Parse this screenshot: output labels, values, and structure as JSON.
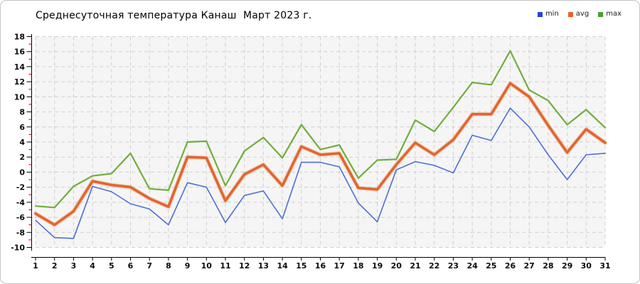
{
  "title": "Среднесуточная температура Канаш  Март 2023 г.",
  "legend": [
    {
      "label": "min",
      "color": "#2443e0"
    },
    {
      "label": "avg",
      "color": "#e8632c"
    },
    {
      "label": "max",
      "color": "#46a22a"
    }
  ],
  "colors": {
    "plot_bg": "#f5f5f5",
    "grid": "#cfcfcf",
    "axis": "#000000",
    "minor_tick": "#cc0000",
    "min_line": "#4d6fd6",
    "avg_line": "#e0662e",
    "avg_halo": "#f4a87e",
    "max_line": "#6fae3c"
  },
  "chart_data": {
    "type": "line",
    "title": "Среднесуточная температура Канаш  Март 2023 г.",
    "xlabel": "",
    "ylabel": "",
    "x": [
      1,
      2,
      3,
      4,
      5,
      6,
      7,
      8,
      9,
      10,
      11,
      12,
      13,
      14,
      15,
      16,
      17,
      18,
      19,
      20,
      21,
      22,
      23,
      24,
      25,
      26,
      27,
      28,
      29,
      30,
      31
    ],
    "xtick_labels": [
      "1",
      "2",
      "3",
      "4",
      "5",
      "6",
      "7",
      "8",
      "9",
      "10",
      "11",
      "12",
      "13",
      "14",
      "15",
      "16",
      "17",
      "18",
      "19",
      "20",
      "21",
      "22",
      "23",
      "24",
      "25",
      "26",
      "27",
      "28",
      "29",
      "30",
      "31"
    ],
    "ylim": [
      -10,
      18
    ],
    "ytick_step": 2,
    "y_minor_tick_step": 1,
    "grid": true,
    "legend_position": "top-right",
    "series": [
      {
        "name": "max",
        "color": "#6fae3c",
        "width": 2.2,
        "values": [
          -4.5,
          -4.7,
          -1.9,
          -0.5,
          -0.2,
          2.5,
          -2.2,
          -2.4,
          4.0,
          4.1,
          -1.8,
          2.8,
          4.6,
          1.9,
          6.3,
          3.0,
          3.6,
          -0.8,
          1.6,
          1.7,
          6.9,
          5.4,
          8.6,
          11.9,
          11.6,
          16.1,
          10.9,
          9.5,
          6.3,
          8.3,
          5.9
        ]
      },
      {
        "name": "min",
        "color": "#4d6fd6",
        "width": 1.6,
        "values": [
          -6.4,
          -8.7,
          -8.8,
          -1.9,
          -2.6,
          -4.2,
          -4.9,
          -7.0,
          -1.4,
          -2.0,
          -6.7,
          -3.1,
          -2.5,
          -6.2,
          1.3,
          1.3,
          0.7,
          -4.1,
          -6.6,
          0.3,
          1.4,
          0.9,
          -0.1,
          4.9,
          4.2,
          8.5,
          6.0,
          2.3,
          -1.0,
          2.3,
          2.5
        ]
      },
      {
        "name": "avg",
        "color": "#e0662e",
        "width": 3.6,
        "values": [
          -5.5,
          -7.0,
          -5.2,
          -1.2,
          -1.7,
          -2.0,
          -3.5,
          -4.6,
          2.0,
          1.9,
          -3.8,
          -0.3,
          1.0,
          -1.8,
          3.4,
          2.3,
          2.5,
          -2.1,
          -2.3,
          1.0,
          3.9,
          2.3,
          4.3,
          7.7,
          7.7,
          11.8,
          10.0,
          6.2,
          2.6,
          5.7,
          3.9
        ]
      }
    ]
  }
}
